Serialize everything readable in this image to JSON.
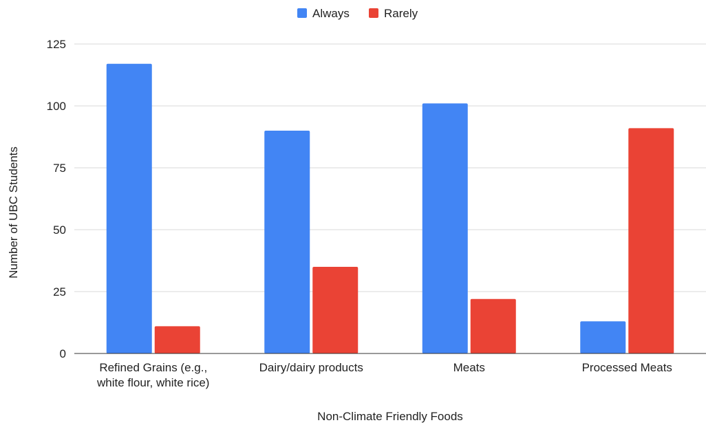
{
  "chart_data": {
    "type": "bar",
    "title": "",
    "xlabel": "Non-Climate Friendly Foods",
    "ylabel": "Number of UBC Students",
    "ylim": [
      0,
      125
    ],
    "yticks": [
      "0",
      "25",
      "50",
      "75",
      "100",
      "125"
    ],
    "grid": true,
    "legend_position": "top-center",
    "categories": [
      [
        "Refined Grains (e.g.,",
        "white flour, white rice)"
      ],
      [
        "Dairy/dairy products"
      ],
      [
        "Meats"
      ],
      [
        "Processed Meats"
      ]
    ],
    "series": [
      {
        "name": "Always",
        "color": "#4285f4",
        "values": [
          117,
          90,
          101,
          13
        ]
      },
      {
        "name": "Rarely",
        "color": "#ea4335",
        "values": [
          11,
          35,
          22,
          91
        ]
      }
    ]
  }
}
